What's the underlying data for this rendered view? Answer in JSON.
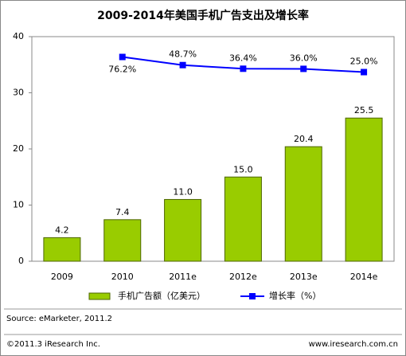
{
  "chart_data": {
    "type": "bar-line",
    "title": "2009-2014年美国手机广告支出及增长率",
    "categories": [
      "2009",
      "2010",
      "2011e",
      "2012e",
      "2013e",
      "2014e"
    ],
    "series": [
      {
        "name": "手机广告额（亿美元）",
        "type": "bar",
        "color": "#99cc00",
        "values": [
          4.2,
          7.4,
          11.0,
          15.0,
          20.4,
          25.5
        ],
        "value_labels": [
          "4.2",
          "7.4",
          "11.0",
          "15.0",
          "20.4",
          "25.5"
        ]
      },
      {
        "name": "增长率（%）",
        "type": "line",
        "axis": "y2",
        "color": "#0000ff",
        "values": [
          null,
          76.2,
          48.7,
          36.4,
          36.0,
          25.0
        ],
        "value_labels": [
          null,
          "76.2%",
          "48.7%",
          "36.4%",
          "36.0%",
          "25.0%"
        ]
      }
    ],
    "ylim": [
      0,
      40
    ],
    "yticks": [
      0,
      10,
      20,
      30,
      40
    ],
    "y2lim": [
      -615,
      145
    ],
    "source": "Source: eMarketer, 2011.2",
    "copyright": "©2011.3 iResearch Inc.",
    "website": "www.iresearch.com.cn"
  }
}
